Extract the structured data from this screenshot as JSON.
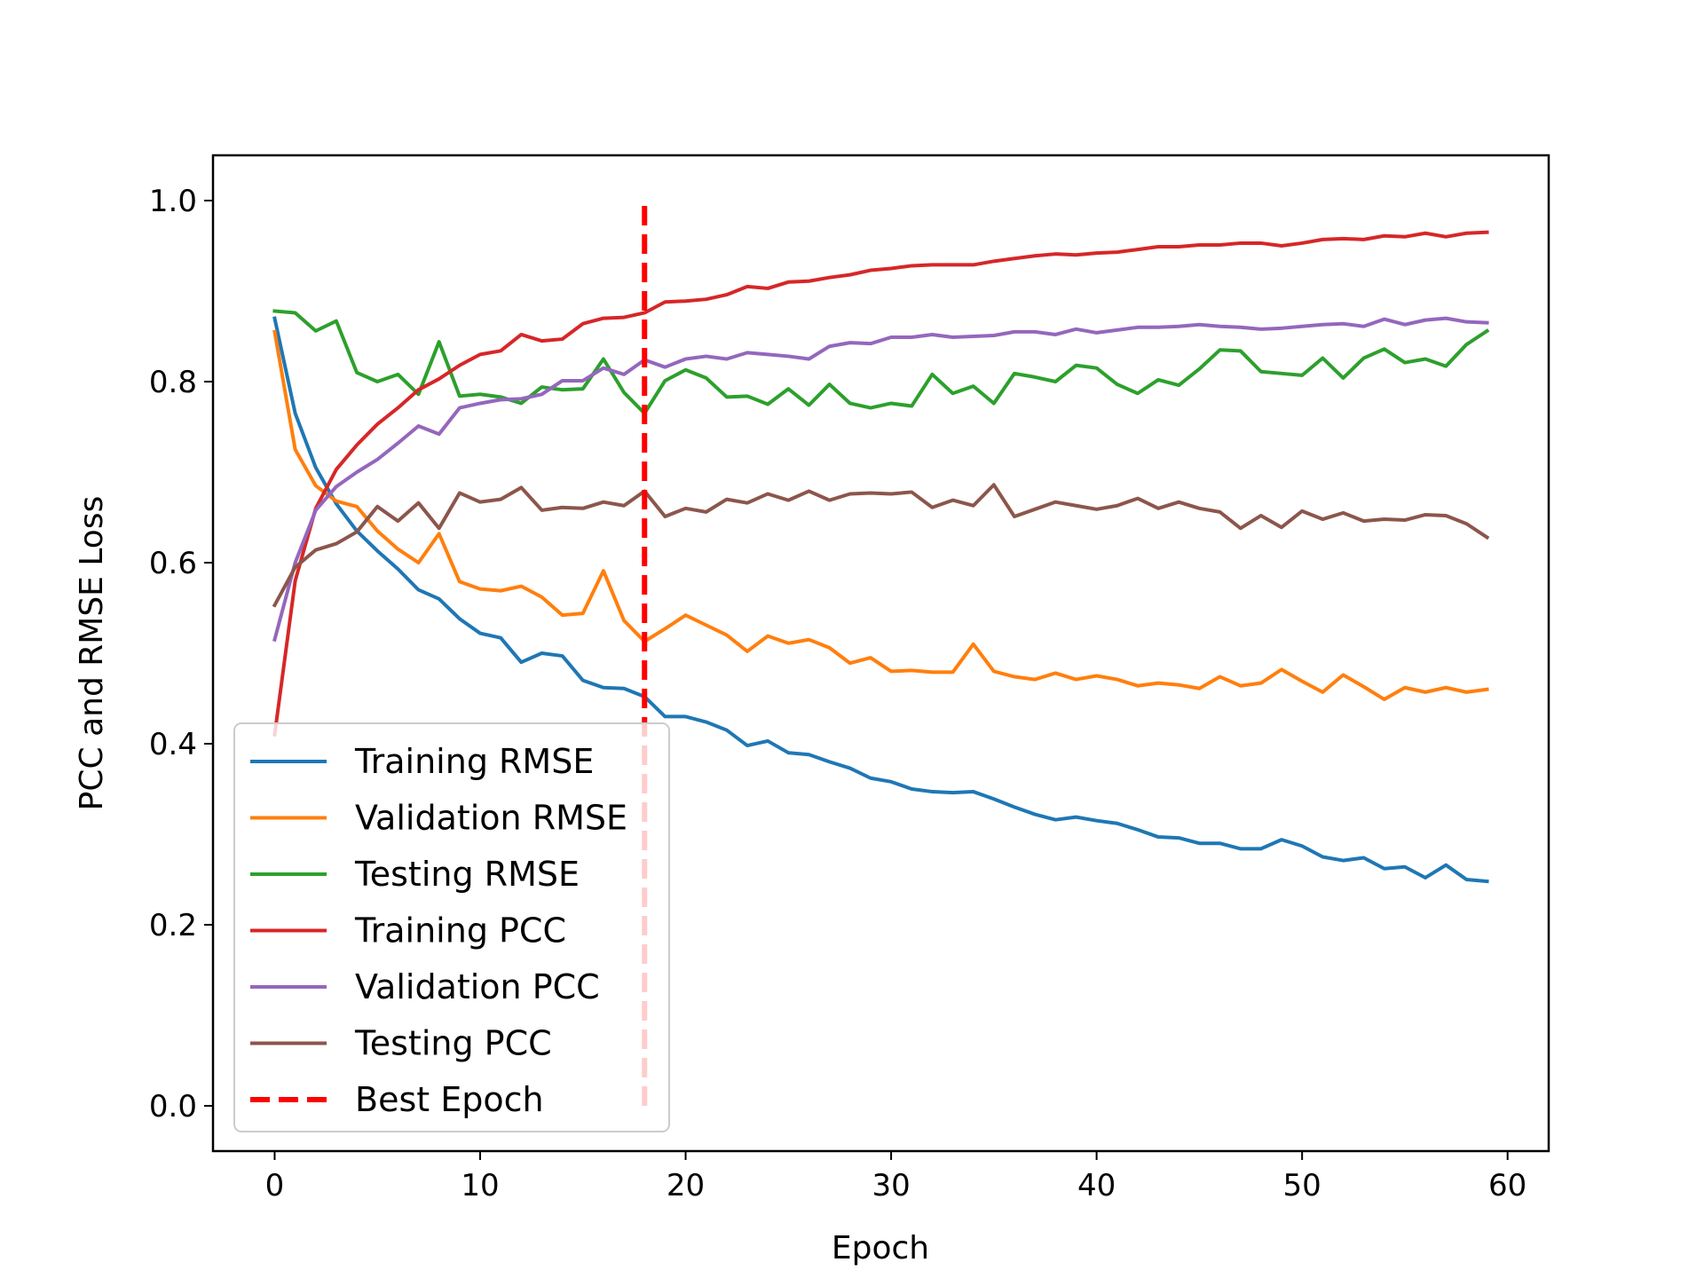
{
  "chart_data": {
    "type": "line",
    "xlabel": "Epoch",
    "ylabel": "PCC and RMSE Loss",
    "xlim": [
      -3,
      62
    ],
    "ylim": [
      -0.05,
      1.05
    ],
    "x_ticks": [
      0,
      10,
      20,
      30,
      40,
      50,
      60
    ],
    "y_ticks": [
      0.0,
      0.2,
      0.4,
      0.6,
      0.8,
      1.0
    ],
    "x_tick_labels": [
      "0",
      "10",
      "20",
      "30",
      "40",
      "50",
      "60"
    ],
    "y_tick_labels": [
      "0.0",
      "0.2",
      "0.4",
      "0.6",
      "0.8",
      "1.0"
    ],
    "grid": false,
    "legend_position": "lower left",
    "series": [
      {
        "name": "Training RMSE",
        "color": "#1f77b4",
        "values": [
          0.87,
          0.765,
          0.705,
          0.665,
          0.635,
          0.613,
          0.593,
          0.57,
          0.56,
          0.538,
          0.522,
          0.517,
          0.49,
          0.5,
          0.497,
          0.47,
          0.462,
          0.461,
          0.452,
          0.43,
          0.43,
          0.424,
          0.415,
          0.398,
          0.403,
          0.39,
          0.388,
          0.38,
          0.373,
          0.362,
          0.358,
          0.35,
          0.347,
          0.346,
          0.347,
          0.339,
          0.33,
          0.322,
          0.316,
          0.319,
          0.315,
          0.312,
          0.305,
          0.297,
          0.296,
          0.29,
          0.29,
          0.284,
          0.284,
          0.294,
          0.287,
          0.275,
          0.271,
          0.274,
          0.262,
          0.264,
          0.252,
          0.266,
          0.25,
          0.248
        ]
      },
      {
        "name": "Validation RMSE",
        "color": "#ff7f0e",
        "values": [
          0.855,
          0.725,
          0.685,
          0.668,
          0.662,
          0.635,
          0.615,
          0.6,
          0.632,
          0.579,
          0.571,
          0.569,
          0.574,
          0.562,
          0.542,
          0.544,
          0.591,
          0.536,
          0.513,
          0.527,
          0.542,
          0.531,
          0.52,
          0.502,
          0.519,
          0.511,
          0.515,
          0.506,
          0.489,
          0.495,
          0.48,
          0.481,
          0.479,
          0.479,
          0.51,
          0.48,
          0.474,
          0.471,
          0.478,
          0.471,
          0.475,
          0.471,
          0.464,
          0.467,
          0.465,
          0.461,
          0.474,
          0.464,
          0.467,
          0.482,
          0.469,
          0.457,
          0.476,
          0.463,
          0.449,
          0.462,
          0.457,
          0.462,
          0.457,
          0.46
        ]
      },
      {
        "name": "Testing RMSE",
        "color": "#2ca02c",
        "values": [
          0.878,
          0.876,
          0.856,
          0.867,
          0.81,
          0.8,
          0.808,
          0.786,
          0.844,
          0.784,
          0.786,
          0.783,
          0.776,
          0.794,
          0.791,
          0.792,
          0.825,
          0.788,
          0.765,
          0.801,
          0.813,
          0.804,
          0.783,
          0.784,
          0.775,
          0.792,
          0.774,
          0.797,
          0.776,
          0.771,
          0.776,
          0.773,
          0.808,
          0.787,
          0.795,
          0.776,
          0.809,
          0.805,
          0.8,
          0.818,
          0.815,
          0.797,
          0.787,
          0.802,
          0.796,
          0.814,
          0.835,
          0.834,
          0.811,
          0.809,
          0.807,
          0.826,
          0.804,
          0.826,
          0.836,
          0.821,
          0.825,
          0.817,
          0.841,
          0.856
        ]
      },
      {
        "name": "Training PCC",
        "color": "#d62728",
        "values": [
          0.41,
          0.58,
          0.66,
          0.703,
          0.73,
          0.753,
          0.771,
          0.791,
          0.803,
          0.818,
          0.83,
          0.834,
          0.852,
          0.845,
          0.847,
          0.864,
          0.87,
          0.871,
          0.876,
          0.888,
          0.889,
          0.891,
          0.896,
          0.905,
          0.903,
          0.91,
          0.911,
          0.915,
          0.918,
          0.923,
          0.925,
          0.928,
          0.929,
          0.929,
          0.929,
          0.933,
          0.936,
          0.939,
          0.941,
          0.94,
          0.942,
          0.943,
          0.946,
          0.949,
          0.949,
          0.951,
          0.951,
          0.953,
          0.953,
          0.95,
          0.953,
          0.957,
          0.958,
          0.957,
          0.961,
          0.96,
          0.964,
          0.96,
          0.964,
          0.965
        ]
      },
      {
        "name": "Validation PCC",
        "color": "#9467bd",
        "values": [
          0.515,
          0.6,
          0.658,
          0.684,
          0.7,
          0.714,
          0.732,
          0.751,
          0.742,
          0.771,
          0.776,
          0.78,
          0.781,
          0.786,
          0.801,
          0.801,
          0.815,
          0.808,
          0.824,
          0.816,
          0.825,
          0.828,
          0.825,
          0.832,
          0.83,
          0.828,
          0.825,
          0.839,
          0.843,
          0.842,
          0.849,
          0.849,
          0.852,
          0.849,
          0.85,
          0.851,
          0.855,
          0.855,
          0.852,
          0.858,
          0.854,
          0.857,
          0.86,
          0.86,
          0.861,
          0.863,
          0.861,
          0.86,
          0.858,
          0.859,
          0.861,
          0.863,
          0.864,
          0.861,
          0.869,
          0.863,
          0.868,
          0.87,
          0.866,
          0.865
        ]
      },
      {
        "name": "Testing PCC",
        "color": "#8c564b",
        "values": [
          0.553,
          0.595,
          0.614,
          0.621,
          0.634,
          0.662,
          0.646,
          0.666,
          0.638,
          0.677,
          0.667,
          0.67,
          0.683,
          0.658,
          0.661,
          0.66,
          0.667,
          0.663,
          0.679,
          0.651,
          0.66,
          0.656,
          0.67,
          0.666,
          0.676,
          0.669,
          0.679,
          0.669,
          0.676,
          0.677,
          0.676,
          0.678,
          0.661,
          0.669,
          0.663,
          0.686,
          0.651,
          0.659,
          0.667,
          0.663,
          0.659,
          0.663,
          0.671,
          0.66,
          0.667,
          0.66,
          0.656,
          0.638,
          0.652,
          0.639,
          0.657,
          0.648,
          0.655,
          0.646,
          0.648,
          0.647,
          0.653,
          0.652,
          0.643,
          0.628
        ]
      }
    ],
    "best_epoch": {
      "name": "Best Epoch",
      "x": 18,
      "y_range": [
        0.0,
        1.0
      ],
      "color": "#ff0000",
      "style": "dashed"
    }
  }
}
